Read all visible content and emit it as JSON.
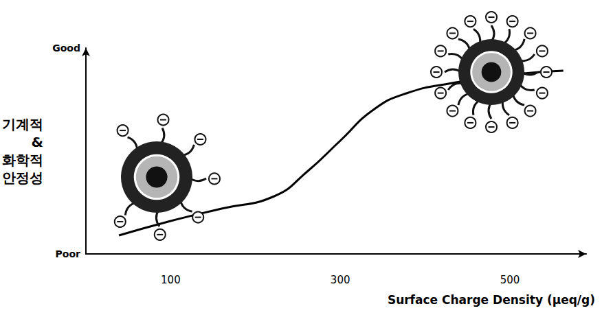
{
  "chart_data": {
    "type": "line",
    "xlabel": "Surface Charge Density (μeq/g)",
    "ylabel": "기계적 & 화학적 안정성",
    "x": [
      39,
      100,
      160,
      222,
      261,
      300,
      339,
      378,
      432,
      500,
      563
    ],
    "values": [
      0.9,
      1.6,
      2.2,
      2.8,
      4.0,
      5.5,
      7.0,
      7.8,
      8.3,
      8.7,
      8.9
    ],
    "color": "#000000",
    "xlim": [
      0,
      590
    ],
    "xticks": [
      100,
      300,
      500
    ],
    "ylim": [
      0,
      10
    ],
    "yticks": [
      {
        "value": 0,
        "label": "Poor"
      },
      {
        "value": 10,
        "label": "Good"
      }
    ],
    "grid": false
  }
}
